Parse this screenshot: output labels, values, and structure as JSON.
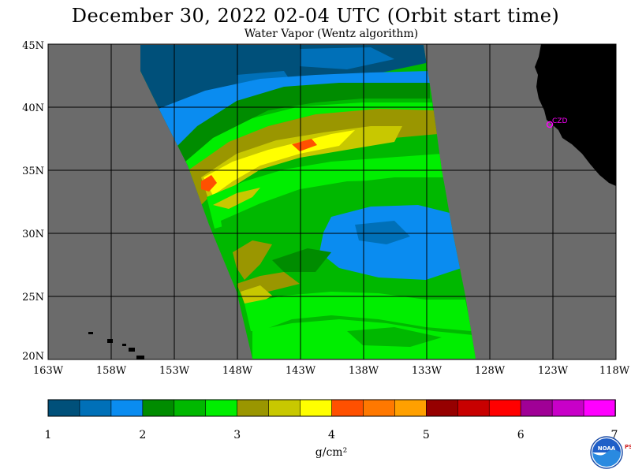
{
  "header": {
    "title": "December 30, 2022  02-04 UTC  (Orbit start time)",
    "subtitle": "Water Vapor (Wentz algorithm)"
  },
  "map": {
    "lat_labels": [
      "45N",
      "40N",
      "35N",
      "30N",
      "25N",
      "20N"
    ],
    "lon_labels": [
      "163W",
      "158W",
      "153W",
      "148W",
      "143W",
      "138W",
      "133W",
      "128W",
      "123W",
      "118W"
    ],
    "lat_range": [
      20,
      45
    ],
    "lon_range": [
      -163,
      -118
    ],
    "station_label": "CZD",
    "colors": {
      "no_data": "#6b6b6b",
      "land": "#000000",
      "grid": "#000000",
      "station": "#ff00ff"
    }
  },
  "colorbar": {
    "unit": "g/cm²",
    "tick_labels": [
      "1",
      "2",
      "3",
      "4",
      "5",
      "6",
      "7"
    ],
    "min": 1,
    "max": 7,
    "colors": [
      "#00507a",
      "#0070b8",
      "#0a8cf0",
      "#008c00",
      "#00b800",
      "#00ee00",
      "#9a9600",
      "#c8c800",
      "#ffff00",
      "#ff5000",
      "#ff7800",
      "#ffa000",
      "#960000",
      "#c80000",
      "#ff0000",
      "#a00096",
      "#c800c8",
      "#ff00ff"
    ]
  },
  "logo": {
    "name": "NOAA",
    "side_text": "PSL"
  }
}
